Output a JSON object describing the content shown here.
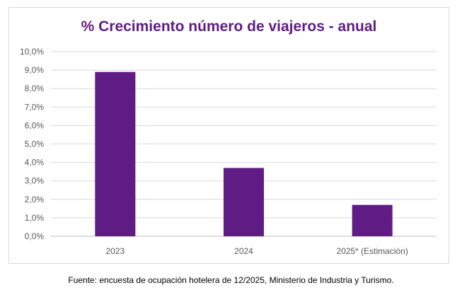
{
  "chart_data": {
    "type": "bar",
    "title": "% Crecimiento número de viajeros - anual",
    "categories": [
      "2023",
      "2024",
      "2025* (Estimación)"
    ],
    "values": [
      8.9,
      3.7,
      1.7
    ],
    "ylim": [
      0,
      10
    ],
    "yticks": [
      "0,0%",
      "1,0%",
      "2,0%",
      "3,0%",
      "4,0%",
      "5,0%",
      "6,0%",
      "7,0%",
      "8,0%",
      "9,0%",
      "10,0%"
    ],
    "grid": true,
    "legend": "none",
    "bar_color": "#5f1c84"
  },
  "caption": "Fuente: encuesta de ocupación hotelera de 12/2025, Ministerio de Industria y Turismo."
}
